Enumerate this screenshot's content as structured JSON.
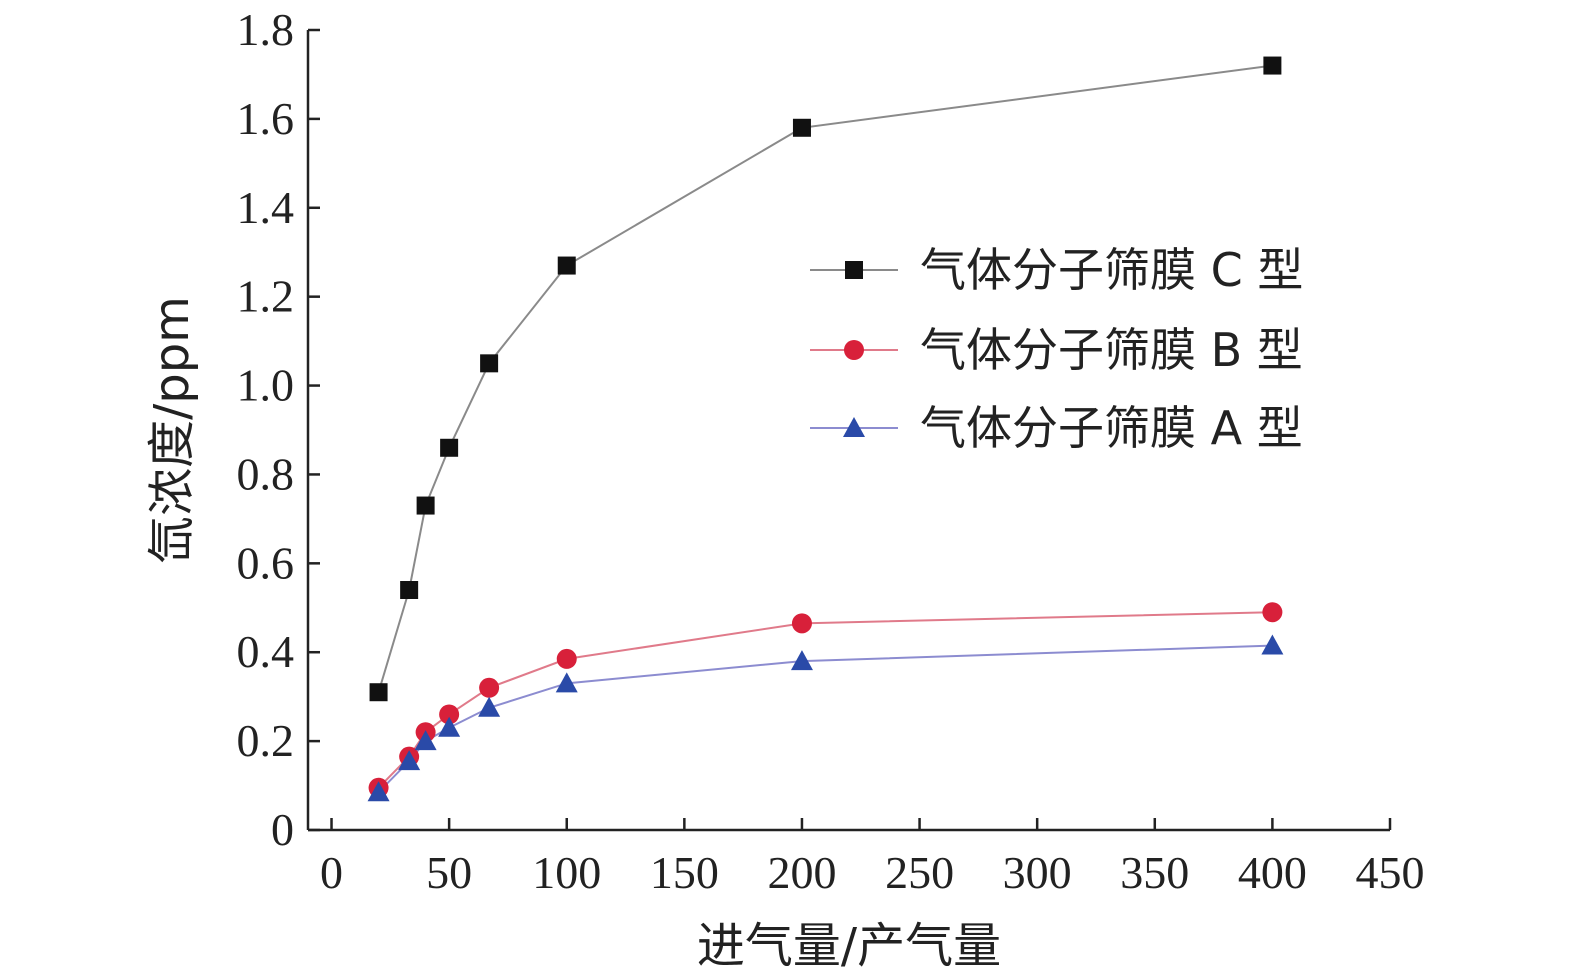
{
  "chart_data": {
    "type": "line",
    "xlabel": "进气量/产气量",
    "ylabel": "氙浓度/ppm",
    "xlim": [
      -10,
      450
    ],
    "ylim": [
      0,
      1.8
    ],
    "xticks": [
      "0",
      "50",
      "100",
      "150",
      "200",
      "250",
      "300",
      "350",
      "400",
      "450"
    ],
    "yticks": [
      "0",
      "0.2",
      "0.4",
      "0.6",
      "0.8",
      "1.0",
      "1.2",
      "1.4",
      "1.6",
      "1.8"
    ],
    "xtick_values": [
      0,
      50,
      100,
      150,
      200,
      250,
      300,
      350,
      400,
      450
    ],
    "ytick_values": [
      0,
      0.2,
      0.4,
      0.6,
      0.8,
      1.0,
      1.2,
      1.4,
      1.6,
      1.8
    ],
    "legend_position": "right",
    "grid": false,
    "series": [
      {
        "name": "气体分子筛膜 C 型",
        "marker": "square",
        "line_color": "#8a8a8a",
        "marker_color": "#111111",
        "x": [
          20,
          33,
          40,
          50,
          67,
          100,
          200,
          400
        ],
        "y": [
          0.31,
          0.54,
          0.73,
          0.86,
          1.05,
          1.27,
          1.58,
          1.72
        ]
      },
      {
        "name": "气体分子筛膜 B 型",
        "marker": "circle",
        "line_color": "#e07a8a",
        "marker_color": "#d8203a",
        "x": [
          20,
          33,
          40,
          50,
          67,
          100,
          200,
          400
        ],
        "y": [
          0.095,
          0.165,
          0.22,
          0.26,
          0.32,
          0.385,
          0.465,
          0.49
        ]
      },
      {
        "name": "气体分子筛膜 A 型",
        "marker": "triangle",
        "line_color": "#8c8cd0",
        "marker_color": "#2a4aa8",
        "x": [
          20,
          33,
          40,
          50,
          67,
          100,
          200,
          400
        ],
        "y": [
          0.085,
          0.155,
          0.2,
          0.23,
          0.275,
          0.33,
          0.38,
          0.415
        ]
      }
    ]
  }
}
